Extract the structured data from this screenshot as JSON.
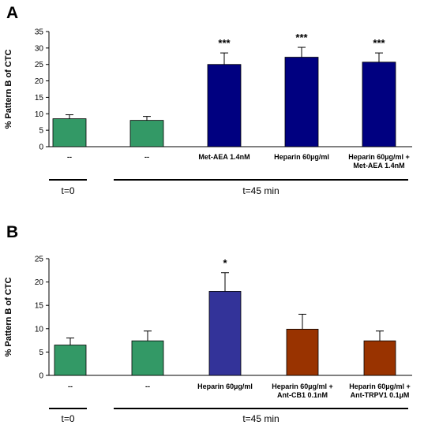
{
  "chart_data": [
    {
      "type": "bar",
      "panel": "A",
      "ylabel": "% Pattern B of CTC",
      "ylim": [
        0,
        35
      ],
      "yticks": [
        0,
        5,
        10,
        15,
        20,
        25,
        30,
        35
      ],
      "categories": [
        [
          "--"
        ],
        [
          "--"
        ],
        [
          "Met-AEA 1.4nM"
        ],
        [
          "Heparin 60µg/ml"
        ],
        [
          "Heparin 60µg/ml +",
          "Met-AEA 1.4nM"
        ]
      ],
      "values": [
        8.5,
        8.0,
        25.0,
        27.2,
        25.7
      ],
      "errors": [
        1.2,
        1.2,
        3.5,
        3.0,
        2.8
      ],
      "annotations": [
        "",
        "",
        "***",
        "***",
        "***"
      ],
      "colors": [
        "#339966",
        "#339966",
        "#000080",
        "#000080",
        "#000080"
      ],
      "time_groups": [
        {
          "label": "t=0",
          "from": 0,
          "to": 0
        },
        {
          "label": "t=45 min",
          "from": 1,
          "to": 4
        }
      ]
    },
    {
      "type": "bar",
      "panel": "B",
      "ylabel": "% Pattern B of CTC",
      "ylim": [
        0,
        25
      ],
      "yticks": [
        0,
        5,
        10,
        15,
        20,
        25
      ],
      "categories": [
        [
          "--"
        ],
        [
          "--"
        ],
        [
          "Heparin 60µg/ml"
        ],
        [
          "Heparin 60µg/ml +",
          "Ant-CB1 0.1nM"
        ],
        [
          "Heparin 60µg/ml +",
          "Ant-TRPV1 0.1µM"
        ]
      ],
      "values": [
        6.5,
        7.4,
        18.0,
        9.9,
        7.4
      ],
      "errors": [
        1.5,
        2.1,
        4.0,
        3.2,
        2.1
      ],
      "annotations": [
        "",
        "",
        "*",
        "",
        ""
      ],
      "colors": [
        "#339966",
        "#339966",
        "#333399",
        "#993300",
        "#993300"
      ],
      "time_groups": [
        {
          "label": "t=0",
          "from": 0,
          "to": 0
        },
        {
          "label": "t=45 min",
          "from": 1,
          "to": 4
        }
      ]
    }
  ]
}
